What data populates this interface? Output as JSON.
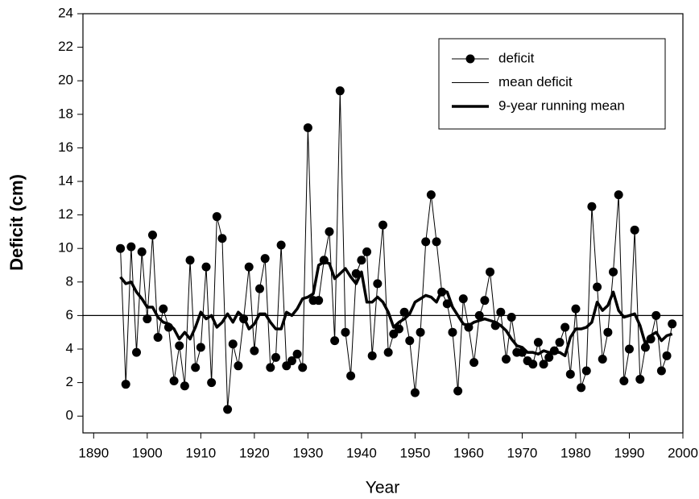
{
  "chart_data": {
    "type": "line",
    "xlabel": "Year",
    "ylabel": "Deficit (cm)",
    "x": [
      1895,
      1896,
      1897,
      1898,
      1899,
      1900,
      1901,
      1902,
      1903,
      1904,
      1905,
      1906,
      1907,
      1908,
      1909,
      1910,
      1911,
      1912,
      1913,
      1914,
      1915,
      1916,
      1917,
      1918,
      1919,
      1920,
      1921,
      1922,
      1923,
      1924,
      1925,
      1926,
      1927,
      1928,
      1929,
      1930,
      1931,
      1932,
      1933,
      1934,
      1935,
      1936,
      1937,
      1938,
      1939,
      1940,
      1941,
      1942,
      1943,
      1944,
      1945,
      1946,
      1947,
      1948,
      1949,
      1950,
      1951,
      1952,
      1953,
      1954,
      1955,
      1956,
      1957,
      1958,
      1959,
      1960,
      1961,
      1962,
      1963,
      1964,
      1965,
      1966,
      1967,
      1968,
      1969,
      1970,
      1971,
      1972,
      1973,
      1974,
      1975,
      1976,
      1977,
      1978,
      1979,
      1980,
      1981,
      1982,
      1983,
      1984,
      1985,
      1986,
      1987,
      1988,
      1989,
      1990,
      1991,
      1992,
      1993,
      1994,
      1995,
      1996,
      1997,
      1998
    ],
    "series": [
      {
        "name": "deficit",
        "color": "#000000",
        "marker": true,
        "values": [
          10.0,
          1.9,
          10.1,
          3.8,
          9.8,
          5.8,
          10.8,
          4.7,
          6.4,
          5.3,
          2.1,
          4.2,
          1.8,
          9.3,
          2.9,
          4.1,
          8.9,
          2.0,
          11.9,
          10.6,
          0.4,
          4.3,
          3.0,
          5.8,
          8.9,
          3.9,
          7.6,
          9.4,
          2.9,
          3.5,
          10.2,
          3.0,
          3.3,
          3.7,
          2.9,
          17.2,
          6.9,
          6.9,
          9.3,
          11.0,
          4.5,
          19.4,
          5.0,
          2.4,
          8.5,
          9.3,
          9.8,
          3.6,
          7.9,
          11.4,
          3.8,
          4.9,
          5.2,
          6.2,
          4.5,
          1.4,
          5.0,
          10.4,
          13.2,
          10.4,
          7.4,
          6.7,
          5.0,
          1.5,
          7.0,
          5.3,
          3.2,
          6.0,
          6.9,
          8.6,
          5.4,
          6.2,
          3.4,
          5.9,
          3.8,
          3.8,
          3.3,
          3.1,
          4.4,
          3.1,
          3.5,
          3.9,
          4.4,
          5.3,
          2.5,
          6.4,
          1.7,
          2.7,
          12.5,
          7.7,
          3.4,
          5.0,
          8.6,
          13.2,
          2.1,
          4.0,
          11.1,
          2.2,
          4.1,
          4.6,
          6.0,
          2.7,
          3.6,
          5.5
        ]
      },
      {
        "name": "mean deficit",
        "color": "#000000",
        "value": 6.0
      },
      {
        "name": "9-year running mean",
        "color": "#000000",
        "values": [
          8.3,
          7.9,
          8.0,
          7.4,
          7.0,
          6.5,
          6.5,
          5.9,
          5.6,
          5.5,
          5.2,
          4.6,
          5.0,
          4.6,
          5.3,
          6.2,
          5.8,
          6.0,
          5.3,
          5.6,
          6.1,
          5.6,
          6.2,
          5.9,
          5.2,
          5.5,
          6.1,
          6.1,
          5.6,
          5.2,
          5.2,
          6.2,
          6.0,
          6.4,
          7.0,
          7.1,
          7.3,
          9.0,
          9.2,
          9.1,
          8.2,
          8.5,
          8.8,
          8.3,
          7.9,
          8.6,
          6.8,
          6.8,
          7.1,
          6.8,
          6.2,
          5.3,
          5.6,
          5.8,
          6.1,
          6.8,
          7.0,
          7.2,
          7.1,
          6.8,
          7.5,
          7.4,
          6.5,
          6.0,
          5.5,
          5.4,
          5.6,
          5.7,
          5.8,
          5.7,
          5.6,
          5.4,
          5.1,
          4.6,
          4.2,
          4.1,
          3.8,
          3.8,
          3.7,
          3.9,
          3.8,
          3.8,
          3.8,
          3.6,
          4.7,
          5.2,
          5.2,
          5.3,
          5.6,
          6.8,
          6.3,
          6.6,
          7.4,
          6.3,
          5.9,
          6.0,
          6.1,
          5.4,
          4.3,
          4.8,
          5.0,
          4.5,
          4.8,
          4.9
        ]
      }
    ],
    "xlim": [
      1888,
      2000
    ],
    "xticks": [
      1890,
      1900,
      1910,
      1920,
      1930,
      1940,
      1950,
      1960,
      1970,
      1980,
      1990,
      2000
    ],
    "ylim": [
      -1,
      24
    ],
    "yticks": [
      0,
      2,
      4,
      6,
      8,
      10,
      12,
      14,
      16,
      18,
      20,
      22,
      24
    ],
    "grid": false,
    "legend": "upper right"
  }
}
